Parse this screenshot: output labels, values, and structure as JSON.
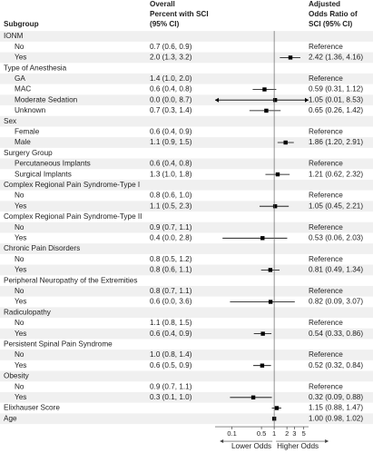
{
  "chart_data": {
    "type": "forest",
    "headers": {
      "subgroup": "Subgroup",
      "percent": "Overall Percent with SCI (95% CI)",
      "odds": "Adjusted Odds Ratio of SCI (95% CI)"
    },
    "xscale": "log",
    "xlim": [
      0.04,
      6.5
    ],
    "xticks": [
      0.1,
      0.5,
      1,
      2,
      3,
      5
    ],
    "x_label_left": "Lower Odds",
    "x_label_right": "Higher Odds",
    "color": "#000000",
    "groups": [
      {
        "name": "IONM",
        "rows": [
          {
            "label": "No",
            "percent": "0.7 (0.6, 0.9)",
            "odds_label": "Reference"
          },
          {
            "label": "Yes",
            "percent": "2.0 (1.3, 3.2)",
            "value": 2.42,
            "lower": 1.36,
            "upper": 4.16,
            "odds_label": "2.42 (1.36, 4.16)"
          }
        ]
      },
      {
        "name": "Type of Anesthesia",
        "rows": [
          {
            "label": "GA",
            "percent": "1.4 (1.0, 2.0)",
            "odds_label": "Reference"
          },
          {
            "label": "MAC",
            "percent": "0.6 (0.4, 0.8)",
            "value": 0.59,
            "lower": 0.31,
            "upper": 1.12,
            "odds_label": "0.59 (0.31, 1.12)"
          },
          {
            "label": "Moderate Sedation",
            "percent": "0.0 (0.0, 8.7)",
            "value": 1.05,
            "lower": 0.01,
            "upper": 8.53,
            "odds_label": "1.05 (0.01, 8.53)"
          },
          {
            "label": "Unknown",
            "percent": "0.7 (0.3, 1.4)",
            "value": 0.65,
            "lower": 0.26,
            "upper": 1.42,
            "odds_label": "0.65 (0.26, 1.42)"
          }
        ]
      },
      {
        "name": "Sex",
        "rows": [
          {
            "label": "Female",
            "percent": "0.6 (0.4, 0.9)",
            "odds_label": "Reference"
          },
          {
            "label": "Male",
            "percent": "1.1 (0.9, 1.5)",
            "value": 1.86,
            "lower": 1.2,
            "upper": 2.91,
            "odds_label": "1.86 (1.20, 2.91)"
          }
        ]
      },
      {
        "name": "Surgery Group",
        "rows": [
          {
            "label": "Percutaneous Implants",
            "percent": "0.6 (0.4, 0.8)",
            "odds_label": "Reference"
          },
          {
            "label": "Surgical Implants",
            "percent": "1.3 (1.0, 1.8)",
            "value": 1.21,
            "lower": 0.62,
            "upper": 2.32,
            "odds_label": "1.21 (0.62, 2.32)"
          }
        ]
      },
      {
        "name": "Complex Regional Pain Syndrome-Type I",
        "rows": [
          {
            "label": "No",
            "percent": "0.8 (0.6, 1.0)",
            "odds_label": "Reference"
          },
          {
            "label": "Yes",
            "percent": "1.1 (0.5, 2.3)",
            "value": 1.05,
            "lower": 0.45,
            "upper": 2.21,
            "odds_label": "1.05 (0.45, 2.21)"
          }
        ]
      },
      {
        "name": "Complex Regional Pain Syndrome-Type II",
        "rows": [
          {
            "label": "No",
            "percent": "0.9 (0.7, 1.1)",
            "odds_label": "Reference"
          },
          {
            "label": "Yes",
            "percent": "0.4 (0.0, 2.8)",
            "value": 0.53,
            "lower": 0.06,
            "upper": 2.03,
            "odds_label": "0.53 (0.06, 2.03)"
          }
        ]
      },
      {
        "name": "Chronic Pain Disorders",
        "rows": [
          {
            "label": "No",
            "percent": "0.8 (0.5, 1.2)",
            "odds_label": "Reference"
          },
          {
            "label": "Yes",
            "percent": "0.8 (0.6, 1.1)",
            "value": 0.81,
            "lower": 0.49,
            "upper": 1.34,
            "odds_label": "0.81 (0.49, 1.34)"
          }
        ]
      },
      {
        "name": "Peripheral Neuropathy of the Extremities",
        "rows": [
          {
            "label": "No",
            "percent": "0.8 (0.7, 1.1)",
            "odds_label": "Reference"
          },
          {
            "label": "Yes",
            "percent": "0.6 (0.0, 3.6)",
            "value": 0.82,
            "lower": 0.09,
            "upper": 3.07,
            "odds_label": "0.82 (0.09, 3.07)"
          }
        ]
      },
      {
        "name": "Radiculopathy",
        "rows": [
          {
            "label": "No",
            "percent": "1.1 (0.8, 1.5)",
            "odds_label": "Reference"
          },
          {
            "label": "Yes",
            "percent": "0.6 (0.4, 0.9)",
            "value": 0.54,
            "lower": 0.33,
            "upper": 0.86,
            "odds_label": "0.54 (0.33, 0.86)"
          }
        ]
      },
      {
        "name": "Persistent Spinal Pain Syndrome",
        "rows": [
          {
            "label": "No",
            "percent": "1.0 (0.8, 1.4)",
            "odds_label": "Reference"
          },
          {
            "label": "Yes",
            "percent": "0.6 (0.5, 0.9)",
            "value": 0.52,
            "lower": 0.32,
            "upper": 0.84,
            "odds_label": "0.52 (0.32, 0.84)"
          }
        ]
      },
      {
        "name": "Obesity",
        "rows": [
          {
            "label": "No",
            "percent": "0.9 (0.7, 1.1)",
            "odds_label": "Reference"
          },
          {
            "label": "Yes",
            "percent": "0.3 (0.1, 1.0)",
            "value": 0.32,
            "lower": 0.09,
            "upper": 0.88,
            "odds_label": "0.32 (0.09, 0.88)"
          }
        ]
      },
      {
        "name": "Elixhauser Score",
        "value": 1.15,
        "lower": 0.88,
        "upper": 1.47,
        "odds_label": "1.15 (0.88, 1.47)"
      },
      {
        "name": "Age",
        "value": 1.0,
        "lower": 0.98,
        "upper": 1.02,
        "odds_label": "1.00 (0.98, 1.02)"
      }
    ]
  }
}
